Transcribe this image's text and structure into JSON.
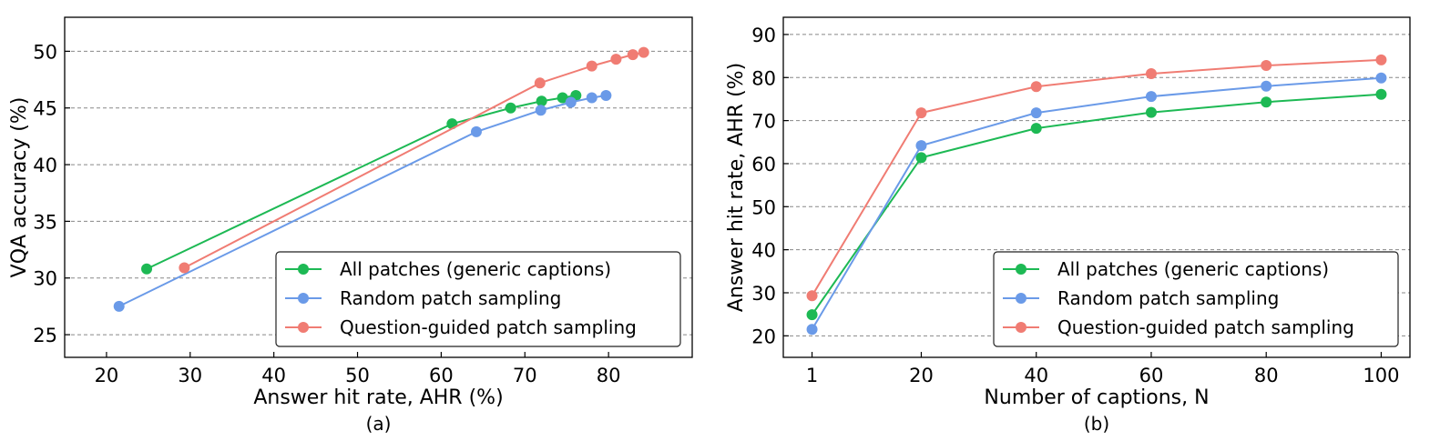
{
  "chart_data": [
    {
      "type": "line",
      "caption": "(a)",
      "xlabel": "Answer hit rate, AHR (%)",
      "ylabel": "VQA accuracy (%)",
      "xlim": [
        15,
        90
      ],
      "ylim": [
        23,
        53
      ],
      "xticks": [
        20,
        30,
        40,
        50,
        60,
        70,
        80
      ],
      "yticks": [
        25,
        30,
        35,
        40,
        45,
        50
      ],
      "grid": "horizontal dashed",
      "legend_position": "bottom-right",
      "series": [
        {
          "name": "All patches (generic captions)",
          "color": "#1db954",
          "x": [
            24.8,
            61.3,
            68.3,
            72.0,
            74.5,
            76.1
          ],
          "y": [
            30.8,
            43.6,
            45.0,
            45.6,
            45.9,
            46.1
          ]
        },
        {
          "name": "Random patch sampling",
          "color": "#6a9ae8",
          "x": [
            21.5,
            64.2,
            71.9,
            75.5,
            78.0,
            79.7
          ],
          "y": [
            27.5,
            42.9,
            44.8,
            45.5,
            45.9,
            46.1
          ]
        },
        {
          "name": "Question-guided patch sampling",
          "color": "#f07c73",
          "x": [
            29.3,
            71.8,
            78.0,
            80.9,
            82.9,
            84.2
          ],
          "y": [
            30.9,
            47.2,
            48.7,
            49.3,
            49.7,
            49.9
          ]
        }
      ]
    },
    {
      "type": "line",
      "caption": "(b)",
      "xlabel": "Number of captions, N",
      "ylabel": "Answer hit rate, AHR (%)",
      "xlim": [
        -4,
        105
      ],
      "ylim": [
        15,
        94
      ],
      "xticks": [
        1,
        20,
        40,
        60,
        80,
        100
      ],
      "yticks": [
        20,
        30,
        40,
        50,
        60,
        70,
        80,
        90
      ],
      "grid": "horizontal dashed",
      "legend_position": "bottom-right",
      "series": [
        {
          "name": "All patches (generic captions)",
          "color": "#1db954",
          "x": [
            1,
            20,
            40,
            60,
            80,
            100
          ],
          "y": [
            24.9,
            61.4,
            68.2,
            71.9,
            74.3,
            76.1
          ]
        },
        {
          "name": "Random patch sampling",
          "color": "#6a9ae8",
          "x": [
            1,
            20,
            40,
            60,
            80,
            100
          ],
          "y": [
            21.5,
            64.2,
            71.8,
            75.6,
            78.0,
            79.9
          ]
        },
        {
          "name": "Question-guided patch sampling",
          "color": "#f07c73",
          "x": [
            1,
            20,
            40,
            60,
            80,
            100
          ],
          "y": [
            29.3,
            71.8,
            77.9,
            80.9,
            82.8,
            84.1
          ]
        }
      ]
    }
  ]
}
